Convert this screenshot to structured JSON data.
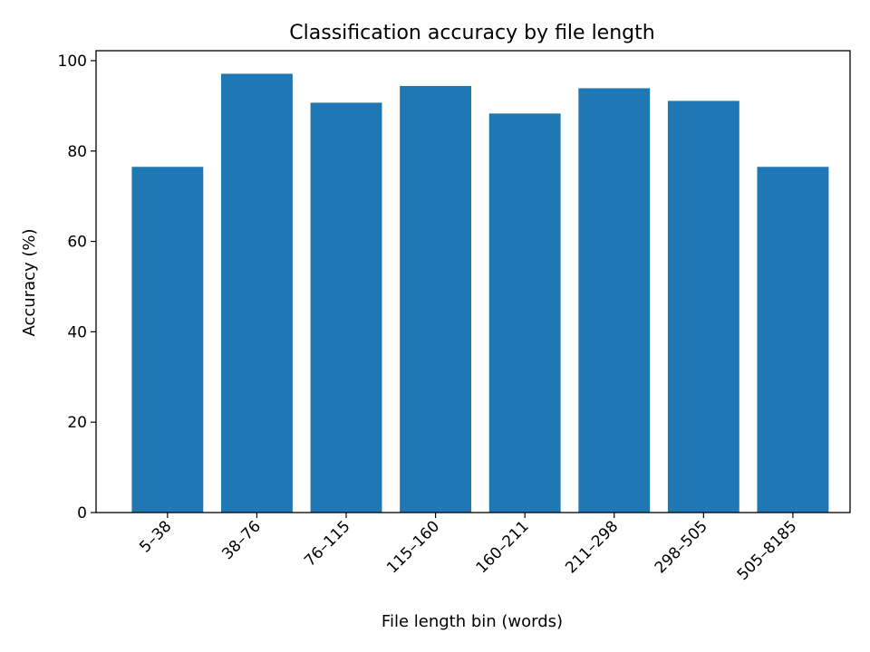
{
  "chart_data": {
    "type": "bar",
    "title": "Classification accuracy by file length",
    "xlabel": "File length bin (words)",
    "ylabel": "Accuracy (%)",
    "categories": [
      "5–38",
      "38–76",
      "76–115",
      "115–160",
      "160–211",
      "211–298",
      "298–505",
      "505–8185"
    ],
    "values": [
      76.5,
      97.1,
      90.7,
      94.4,
      88.3,
      93.9,
      91.1,
      76.5
    ],
    "ylim": [
      0,
      102.2
    ],
    "yticks": [
      0,
      20,
      40,
      60,
      80,
      100
    ],
    "grid": false,
    "legend": "none",
    "bar_color": "#1f77b4"
  }
}
